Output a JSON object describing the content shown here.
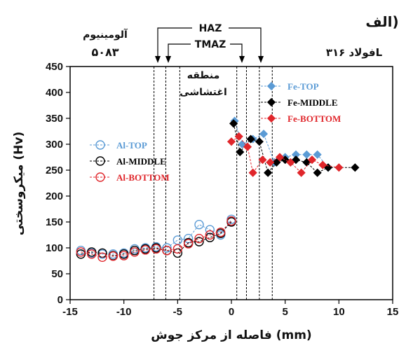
{
  "chart_data": {
    "type": "scatter",
    "panel_label": "الف)",
    "xlabel": "فاصله از مرکز جوش (mm)",
    "ylabel": "میکروسختی (Hv)",
    "xlim": [
      -15,
      15
    ],
    "ylim": [
      0,
      450
    ],
    "x_ticks": [
      -15,
      -10,
      -5,
      0,
      5,
      10,
      15
    ],
    "y_ticks": [
      0,
      50,
      100,
      150,
      200,
      250,
      300,
      350,
      400,
      450
    ],
    "grid": false,
    "annotations": {
      "haz": "HAZ",
      "tmaz": "TMAZ",
      "stir_zone_line1": "منطقه",
      "stir_zone_line2": "اغتشاشی",
      "aluminum_line1": "آلومینیوم",
      "aluminum_line2": "۵۰۸۳",
      "steel": "فولاد ۳۱۶L"
    },
    "zone_boundaries_x": [
      -7.2,
      -6.1,
      -4.8,
      0.5,
      1.4,
      2.6,
      3.8
    ],
    "series": [
      {
        "name": "Al-TOP",
        "color": "#5b9bd5",
        "marker": "open-circle",
        "x": [
          -14,
          -13,
          -12,
          -11,
          -10,
          -9,
          -8,
          -7,
          -6,
          -5,
          -4,
          -3,
          -2,
          -1,
          0
        ],
        "y": [
          95,
          90,
          88,
          88,
          90,
          98,
          100,
          102,
          100,
          115,
          118,
          145,
          135,
          125,
          155
        ]
      },
      {
        "name": "Al-MIDDLE",
        "color": "#000000",
        "marker": "open-circle",
        "x": [
          -14,
          -13,
          -12,
          -11,
          -10,
          -9,
          -8,
          -7,
          -6,
          -5,
          -4,
          -3,
          -2,
          -1,
          0
        ],
        "y": [
          88,
          92,
          90,
          85,
          88,
          95,
          98,
          100,
          95,
          90,
          110,
          112,
          120,
          128,
          150
        ]
      },
      {
        "name": "Al-BOTTOM",
        "color": "#e0262b",
        "marker": "open-circle",
        "x": [
          -14,
          -13,
          -12,
          -11,
          -10,
          -9,
          -8,
          -7,
          -6,
          -5,
          -4,
          -3,
          -2,
          -1,
          0
        ],
        "y": [
          92,
          88,
          82,
          84,
          85,
          92,
          96,
          98,
          95,
          98,
          108,
          118,
          125,
          130,
          152
        ]
      },
      {
        "name": "Fe-TOP",
        "color": "#5b9bd5",
        "marker": "diamond",
        "x": [
          0.3,
          1,
          2,
          3,
          4,
          5,
          6,
          7,
          8,
          9
        ],
        "y": [
          345,
          300,
          310,
          320,
          265,
          275,
          280,
          280,
          280,
          255
        ]
      },
      {
        "name": "Fe-MIDDLE",
        "color": "#000000",
        "marker": "diamond",
        "x": [
          0.2,
          0.8,
          1.8,
          2.6,
          3.4,
          4.2,
          5,
          6,
          7,
          8,
          9,
          11.5
        ],
        "y": [
          340,
          285,
          310,
          305,
          245,
          265,
          270,
          270,
          265,
          245,
          255,
          255
        ]
      },
      {
        "name": "Fe-BOTTOM",
        "color": "#e0262b",
        "marker": "diamond",
        "x": [
          0,
          0.7,
          1.5,
          2,
          2.9,
          3.6,
          4.5,
          5.5,
          6.5,
          7.5,
          8.5,
          10
        ],
        "y": [
          305,
          315,
          295,
          245,
          270,
          265,
          275,
          265,
          245,
          270,
          260,
          255
        ]
      }
    ]
  }
}
